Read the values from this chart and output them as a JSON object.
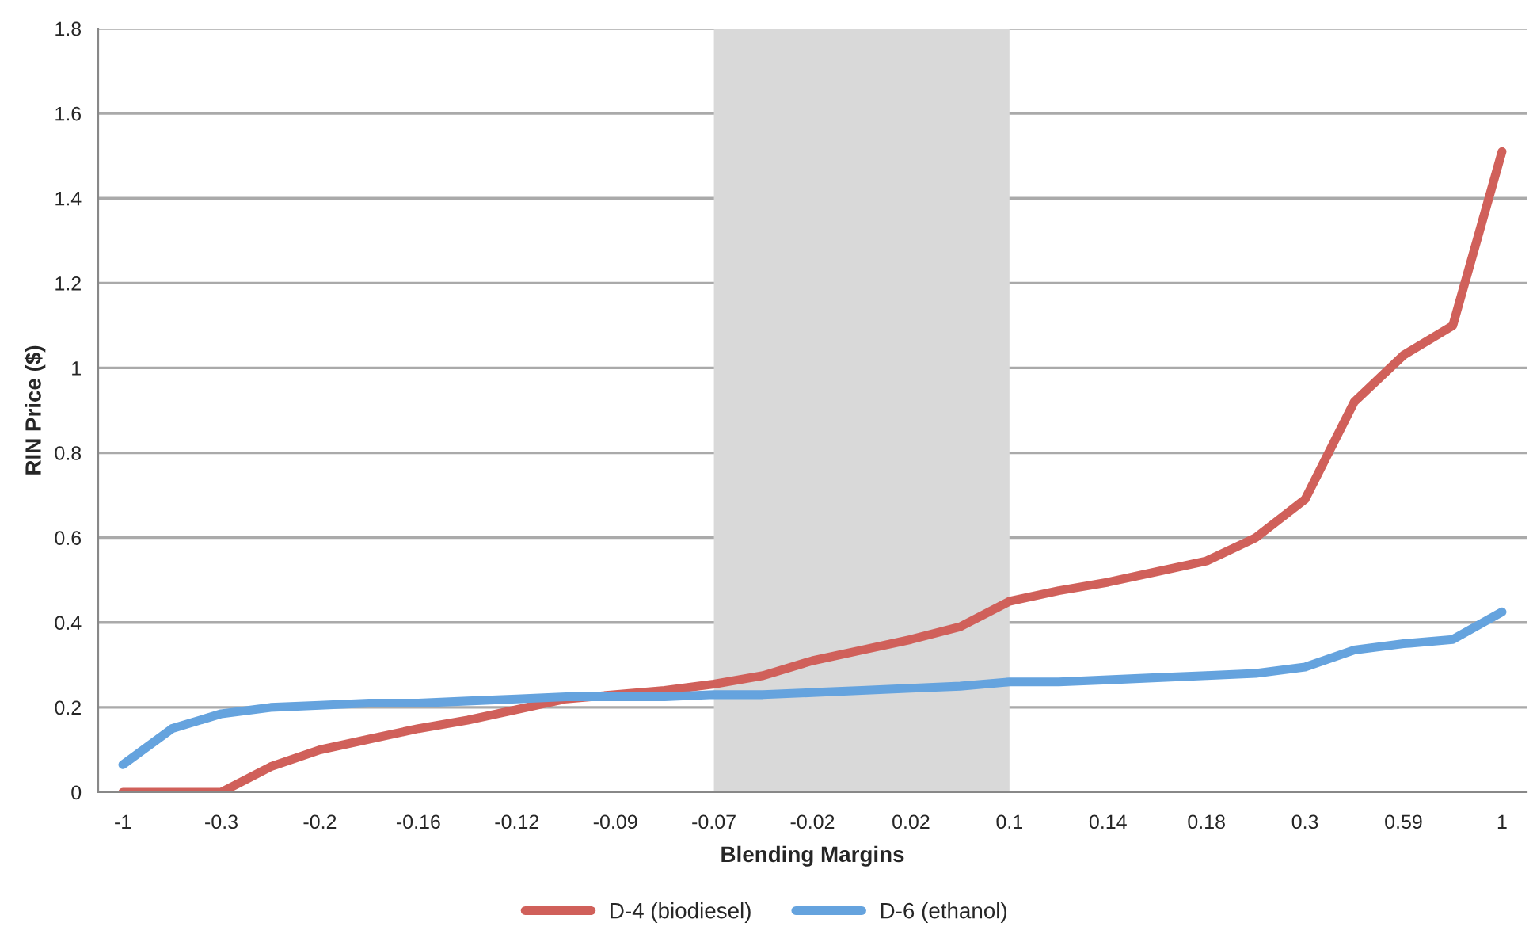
{
  "chart_data": {
    "type": "line",
    "xlabel": "Blending Margins",
    "ylabel": "RIN Price ($)",
    "categories": [
      "-1",
      null,
      "-0.3",
      null,
      "-0.2",
      null,
      "-0.16",
      null,
      "-0.12",
      null,
      "-0.09",
      null,
      "-0.07",
      null,
      "-0.02",
      null,
      "0.02",
      null,
      "0.1",
      null,
      "0.14",
      null,
      "0.18",
      null,
      "0.3",
      null,
      "0.59",
      null,
      "1"
    ],
    "series": [
      {
        "name": "D-4 (biodiesel)",
        "color": "#d0605a",
        "values": [
          0,
          0,
          0,
          0.06,
          0.1,
          0.125,
          0.15,
          0.17,
          0.195,
          0.22,
          0.23,
          0.24,
          0.255,
          0.275,
          0.31,
          0.335,
          0.36,
          0.39,
          0.45,
          0.475,
          0.495,
          0.52,
          0.545,
          0.6,
          0.69,
          0.92,
          1.03,
          1.1,
          1.51
        ]
      },
      {
        "name": "D-6 (ethanol)",
        "color": "#65a3de",
        "values": [
          0.065,
          0.15,
          0.185,
          0.2,
          0.205,
          0.21,
          0.21,
          0.215,
          0.22,
          0.225,
          0.225,
          0.225,
          0.23,
          0.23,
          0.235,
          0.24,
          0.245,
          0.25,
          0.26,
          0.26,
          0.265,
          0.27,
          0.275,
          0.28,
          0.295,
          0.335,
          0.35,
          0.36,
          0.425
        ]
      }
    ],
    "ylim": [
      0,
      1.8
    ],
    "yticks": [
      0,
      {
        "value": 0.2,
        "label": "0.2"
      },
      {
        "value": 0.4,
        "label": "0.4"
      },
      {
        "value": 0.6,
        "label": "0.6"
      },
      {
        "value": 0.8,
        "label": "0.8"
      },
      1,
      {
        "value": 1.2,
        "label": "1.2"
      },
      {
        "value": 1.4,
        "label": "1.4"
      },
      {
        "value": 1.6,
        "label": "1.6"
      },
      {
        "value": 1.8,
        "label": "1.8"
      }
    ],
    "bands": [
      {
        "axis": "x",
        "from": "-0.07",
        "to": "0.1",
        "color": "#d9d9d9"
      }
    ],
    "grid": "y",
    "legend": "bottom",
    "marker": "none",
    "line_style": "solid"
  }
}
